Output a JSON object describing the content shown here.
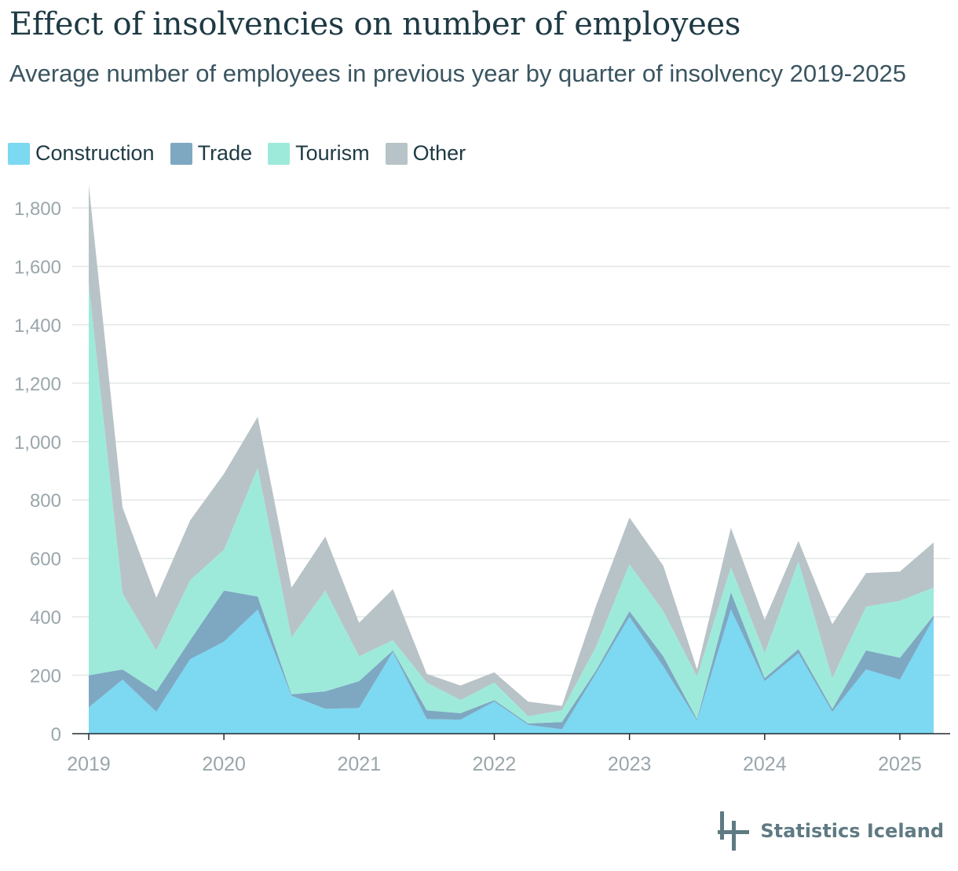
{
  "header": {
    "title": "Effect of insolvencies on number of employees",
    "subtitle": "Average number of employees in previous year by quarter of insolvency 2019-2025"
  },
  "legend": [
    {
      "label": "Construction",
      "color": "#7dd8f2"
    },
    {
      "label": "Trade",
      "color": "#7ea8c2"
    },
    {
      "label": "Tourism",
      "color": "#9deadb"
    },
    {
      "label": "Other",
      "color": "#b8c3c7"
    }
  ],
  "logo": {
    "text": "Statistics Iceland",
    "icon": "statistics-iceland-logo-icon"
  },
  "chart_data": {
    "type": "area",
    "stacked": true,
    "x": [
      "2019 Q1",
      "2019 Q2",
      "2019 Q3",
      "2019 Q4",
      "2020 Q1",
      "2020 Q2",
      "2020 Q3",
      "2020 Q4",
      "2021 Q1",
      "2021 Q2",
      "2021 Q3",
      "2021 Q4",
      "2022 Q1",
      "2022 Q2",
      "2022 Q3",
      "2022 Q4",
      "2023 Q1",
      "2023 Q2",
      "2023 Q3",
      "2023 Q4",
      "2024 Q1",
      "2024 Q2",
      "2024 Q3",
      "2024 Q4",
      "2025 Q1",
      "2025 Q2"
    ],
    "x_tick_labels": [
      "2019",
      "2020",
      "2021",
      "2022",
      "2023",
      "2024",
      "2025"
    ],
    "y_tick_labels": [
      "0",
      "200",
      "400",
      "600",
      "800",
      "1,000",
      "1,200",
      "1,400",
      "1,600",
      "1,800"
    ],
    "ylim": [
      0,
      1800
    ],
    "grid": true,
    "legend_position": "top-left",
    "series": [
      {
        "name": "Construction",
        "color": "#7dd8f2",
        "values": [
          90,
          185,
          75,
          255,
          315,
          425,
          130,
          85,
          88,
          280,
          50,
          48,
          110,
          30,
          15,
          205,
          400,
          230,
          45,
          425,
          180,
          275,
          75,
          220,
          185,
          395
        ]
      },
      {
        "name": "Trade",
        "color": "#7ea8c2",
        "values": [
          110,
          35,
          70,
          65,
          175,
          45,
          5,
          60,
          92,
          5,
          30,
          22,
          5,
          5,
          25,
          10,
          20,
          35,
          5,
          60,
          10,
          15,
          10,
          65,
          75,
          10
        ]
      },
      {
        "name": "Tourism",
        "color": "#9deadb",
        "values": [
          1340,
          260,
          140,
          205,
          140,
          440,
          195,
          345,
          85,
          35,
          95,
          45,
          60,
          25,
          40,
          80,
          160,
          155,
          145,
          85,
          85,
          300,
          105,
          150,
          195,
          95
        ]
      },
      {
        "name": "Other",
        "color": "#b8c3c7",
        "values": [
          340,
          295,
          180,
          205,
          260,
          175,
          170,
          185,
          115,
          175,
          30,
          50,
          35,
          50,
          15,
          140,
          160,
          155,
          25,
          135,
          115,
          70,
          185,
          115,
          100,
          155
        ]
      }
    ]
  }
}
